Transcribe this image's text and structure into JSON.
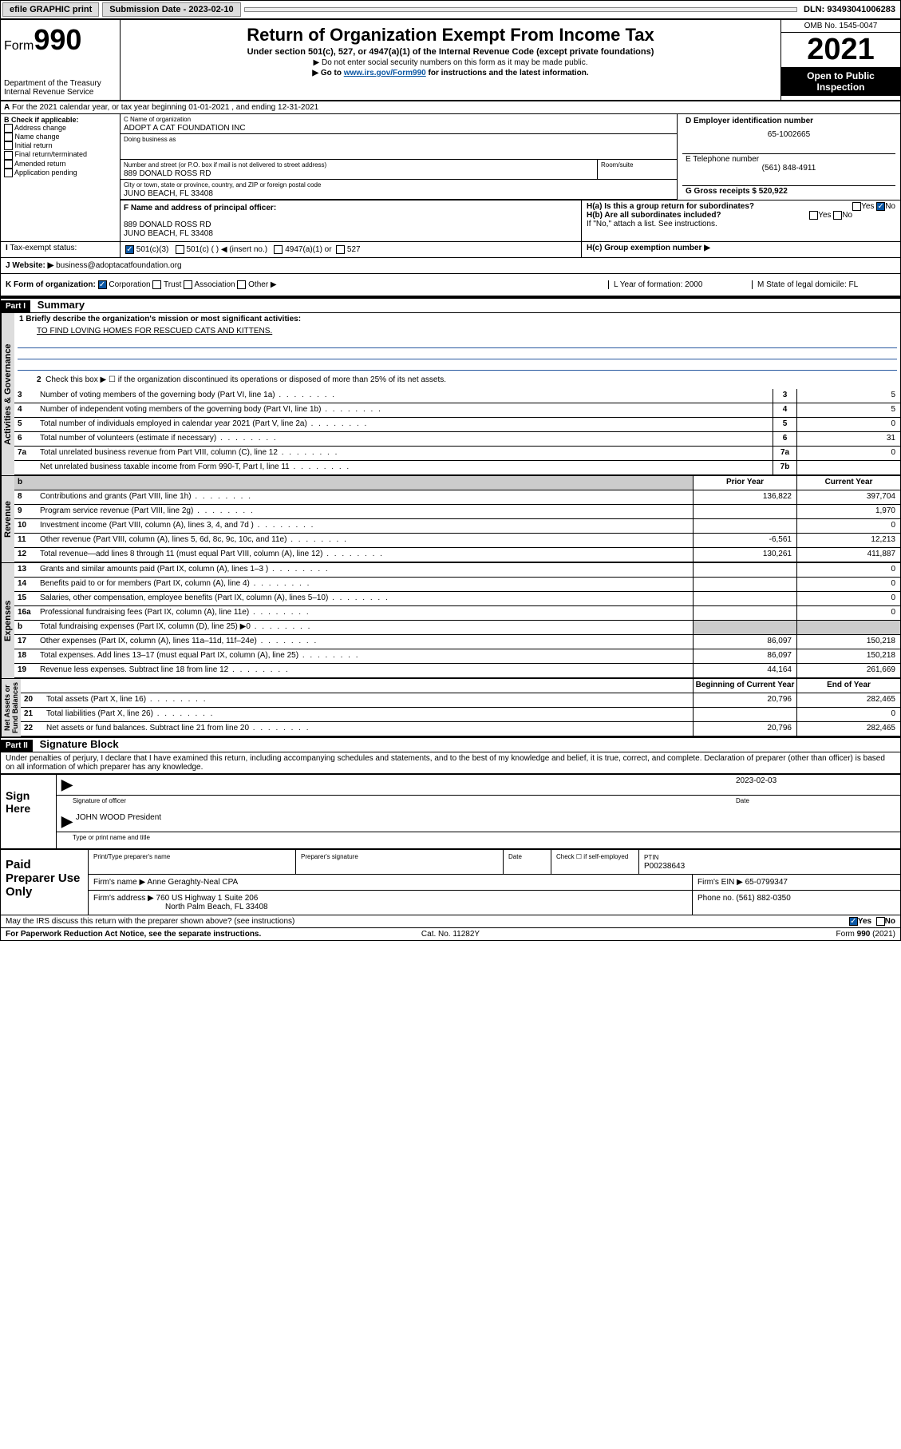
{
  "topbar": {
    "efile": "efile GRAPHIC print",
    "subdate_label": "Submission Date - 2023-02-10",
    "dln": "DLN: 93493041006283"
  },
  "header": {
    "form_label": "Form",
    "form_num": "990",
    "dept": "Department of the Treasury",
    "irs": "Internal Revenue Service",
    "title": "Return of Organization Exempt From Income Tax",
    "sub1": "Under section 501(c), 527, or 4947(a)(1) of the Internal Revenue Code (except private foundations)",
    "sub2": "▶ Do not enter social security numbers on this form as it may be made public.",
    "sub3_pre": "▶ Go to ",
    "sub3_link": "www.irs.gov/Form990",
    "sub3_post": " for instructions and the latest information.",
    "omb": "OMB No. 1545-0047",
    "year": "2021",
    "open": "Open to Public Inspection"
  },
  "sectionA": "For the 2021 calendar year, or tax year beginning 01-01-2021   , and ending 12-31-2021",
  "colB": {
    "label": "B Check if applicable:",
    "items": [
      "Address change",
      "Name change",
      "Initial return",
      "Final return/terminated",
      "Amended return",
      "Application pending"
    ]
  },
  "org": {
    "name_label": "C Name of organization",
    "name": "ADOPT A CAT FOUNDATION INC",
    "dba_label": "Doing business as",
    "street_label": "Number and street (or P.O. box if mail is not delivered to street address)",
    "room_label": "Room/suite",
    "street": "889 DONALD ROSS RD",
    "city_label": "City or town, state or province, country, and ZIP or foreign postal code",
    "city": "JUNO BEACH, FL  33408",
    "officer_label": "F  Name and address of principal officer:",
    "officer_addr1": "889 DONALD ROSS RD",
    "officer_addr2": "JUNO BEACH, FL  33408"
  },
  "right": {
    "ein_label": "D Employer identification number",
    "ein": "65-1002665",
    "phone_label": "E Telephone number",
    "phone": "(561) 848-4911",
    "gross_label": "G Gross receipts $ 520,922",
    "ha": "H(a)  Is this a group return for subordinates?",
    "hb": "H(b)  Are all subordinates included?",
    "hb_note": "If \"No,\" attach a list. See instructions.",
    "hc": "H(c)  Group exemption number ▶"
  },
  "taxexempt": {
    "label": "Tax-exempt status:",
    "c3": "501(c)(3)",
    "c": "501(c) (   ) ◀ (insert no.)",
    "a1": "4947(a)(1) or",
    "s527": "527"
  },
  "website": {
    "label": "J   Website: ▶",
    "val": "business@adoptacatfoundation.org"
  },
  "formorg": {
    "label": "K Form of organization:",
    "corp": "Corporation",
    "trust": "Trust",
    "assoc": "Association",
    "other": "Other ▶",
    "year": "L Year of formation: 2000",
    "state": "M State of legal domicile: FL"
  },
  "part1": {
    "head": "Part I",
    "title": "Summary"
  },
  "mission": {
    "prompt": "1  Briefly describe the organization's mission or most significant activities:",
    "text": "TO FIND LOVING HOMES FOR RESCUED CATS AND KITTENS."
  },
  "line2": "Check this box ▶ ☐  if the organization discontinued its operations or disposed of more than 25% of its net assets.",
  "gov_lines": [
    {
      "n": "3",
      "d": "Number of voting members of the governing body (Part VI, line 1a)",
      "box": "3",
      "v": "5"
    },
    {
      "n": "4",
      "d": "Number of independent voting members of the governing body (Part VI, line 1b)",
      "box": "4",
      "v": "5"
    },
    {
      "n": "5",
      "d": "Total number of individuals employed in calendar year 2021 (Part V, line 2a)",
      "box": "5",
      "v": "0"
    },
    {
      "n": "6",
      "d": "Total number of volunteers (estimate if necessary)",
      "box": "6",
      "v": "31"
    },
    {
      "n": "7a",
      "d": "Total unrelated business revenue from Part VIII, column (C), line 12",
      "box": "7a",
      "v": "0"
    },
    {
      "n": "",
      "d": "Net unrelated business taxable income from Form 990-T, Part I, line 11",
      "box": "7b",
      "v": ""
    }
  ],
  "rev_head": {
    "prior": "Prior Year",
    "curr": "Current Year"
  },
  "rev_lines": [
    {
      "n": "8",
      "d": "Contributions and grants (Part VIII, line 1h)",
      "p": "136,822",
      "c": "397,704"
    },
    {
      "n": "9",
      "d": "Program service revenue (Part VIII, line 2g)",
      "p": "",
      "c": "1,970"
    },
    {
      "n": "10",
      "d": "Investment income (Part VIII, column (A), lines 3, 4, and 7d )",
      "p": "",
      "c": "0"
    },
    {
      "n": "11",
      "d": "Other revenue (Part VIII, column (A), lines 5, 6d, 8c, 9c, 10c, and 11e)",
      "p": "-6,561",
      "c": "12,213"
    },
    {
      "n": "12",
      "d": "Total revenue—add lines 8 through 11 (must equal Part VIII, column (A), line 12)",
      "p": "130,261",
      "c": "411,887"
    }
  ],
  "exp_lines": [
    {
      "n": "13",
      "d": "Grants and similar amounts paid (Part IX, column (A), lines 1–3 )",
      "p": "",
      "c": "0"
    },
    {
      "n": "14",
      "d": "Benefits paid to or for members (Part IX, column (A), line 4)",
      "p": "",
      "c": "0"
    },
    {
      "n": "15",
      "d": "Salaries, other compensation, employee benefits (Part IX, column (A), lines 5–10)",
      "p": "",
      "c": "0"
    },
    {
      "n": "16a",
      "d": "Professional fundraising fees (Part IX, column (A), line 11e)",
      "p": "",
      "c": "0"
    },
    {
      "n": "b",
      "d": "Total fundraising expenses (Part IX, column (D), line 25) ▶0",
      "p": "grey",
      "c": "grey"
    },
    {
      "n": "17",
      "d": "Other expenses (Part IX, column (A), lines 11a–11d, 11f–24e)",
      "p": "86,097",
      "c": "150,218"
    },
    {
      "n": "18",
      "d": "Total expenses. Add lines 13–17 (must equal Part IX, column (A), line 25)",
      "p": "86,097",
      "c": "150,218"
    },
    {
      "n": "19",
      "d": "Revenue less expenses. Subtract line 18 from line 12",
      "p": "44,164",
      "c": "261,669"
    }
  ],
  "net_head": {
    "b": "Beginning of Current Year",
    "e": "End of Year"
  },
  "net_lines": [
    {
      "n": "20",
      "d": "Total assets (Part X, line 16)",
      "p": "20,796",
      "c": "282,465"
    },
    {
      "n": "21",
      "d": "Total liabilities (Part X, line 26)",
      "p": "",
      "c": "0"
    },
    {
      "n": "22",
      "d": "Net assets or fund balances. Subtract line 21 from line 20",
      "p": "20,796",
      "c": "282,465"
    }
  ],
  "part2": {
    "head": "Part II",
    "title": "Signature Block"
  },
  "perjury": "Under penalties of perjury, I declare that I have examined this return, including accompanying schedules and statements, and to the best of my knowledge and belief, it is true, correct, and complete. Declaration of preparer (other than officer) is based on all information of which preparer has any knowledge.",
  "sign": {
    "here": "Sign Here",
    "sig_label": "Signature of officer",
    "date": "2023-02-03",
    "date_label": "Date",
    "name": "JOHN WOOD  President",
    "name_label": "Type or print name and title"
  },
  "prep": {
    "label": "Paid Preparer Use Only",
    "c1": "Print/Type preparer's name",
    "c2": "Preparer's signature",
    "c3": "Date",
    "c4a": "Check ☐ if self-employed",
    "c5l": "PTIN",
    "c5": "P00238643",
    "firm_name_l": "Firm's name    ▶",
    "firm_name": "Anne Geraghty-Neal CPA",
    "firm_ein_l": "Firm's EIN ▶",
    "firm_ein": "65-0799347",
    "firm_addr_l": "Firm's address ▶",
    "firm_addr1": "760 US Highway 1 Suite 206",
    "firm_addr2": "North Palm Beach, FL  33408",
    "firm_phone_l": "Phone no.",
    "firm_phone": "(561) 882-0350"
  },
  "discuss": "May the IRS discuss this return with the preparer shown above? (see instructions)",
  "foot": {
    "left": "For Paperwork Reduction Act Notice, see the separate instructions.",
    "mid": "Cat. No. 11282Y",
    "right": "Form 990 (2021)"
  },
  "yes": "Yes",
  "no": "No"
}
